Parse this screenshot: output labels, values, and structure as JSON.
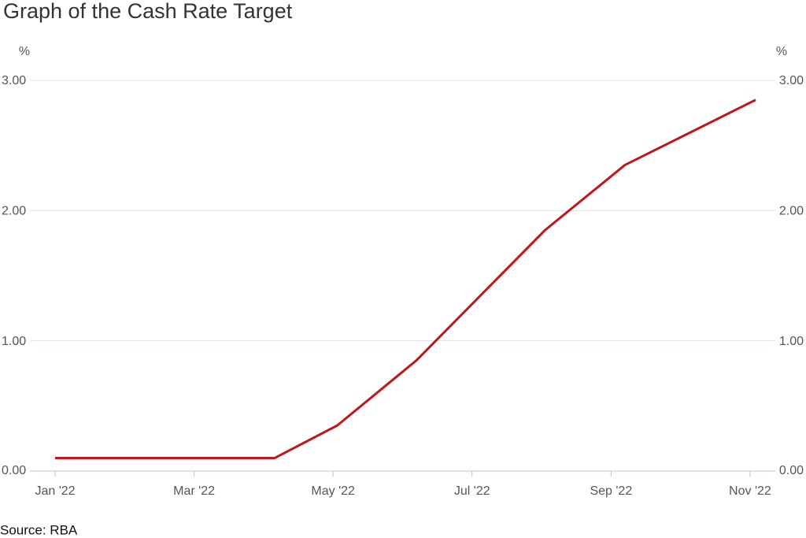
{
  "chart_data": {
    "type": "line",
    "title": "Graph of the Cash Rate Target",
    "y_unit": "%",
    "source": "Source: RBA",
    "x": [
      0,
      3.16,
      4.06,
      5.2,
      7.05,
      8.2,
      10.08
    ],
    "series": [
      {
        "name": "Cash Rate Target",
        "color": "#c0161d",
        "values": [
          0.1,
          0.1,
          0.35,
          0.85,
          1.85,
          2.35,
          2.85
        ]
      }
    ],
    "xlim": [
      0,
      10.08
    ],
    "xticks": [
      {
        "value": 0,
        "label": "Jan '22"
      },
      {
        "value": 2,
        "label": "Mar '22"
      },
      {
        "value": 4,
        "label": "May '22"
      },
      {
        "value": 6,
        "label": "Jul '22"
      },
      {
        "value": 8,
        "label": "Sep '22"
      },
      {
        "value": 10,
        "label": "Nov '22"
      }
    ],
    "ylim": [
      0,
      3
    ],
    "yticks": [
      {
        "value": 0,
        "label": "0.00"
      },
      {
        "value": 1,
        "label": "1.00"
      },
      {
        "value": 2,
        "label": "2.00"
      },
      {
        "value": 3,
        "label": "3.00"
      }
    ],
    "grid": true
  }
}
